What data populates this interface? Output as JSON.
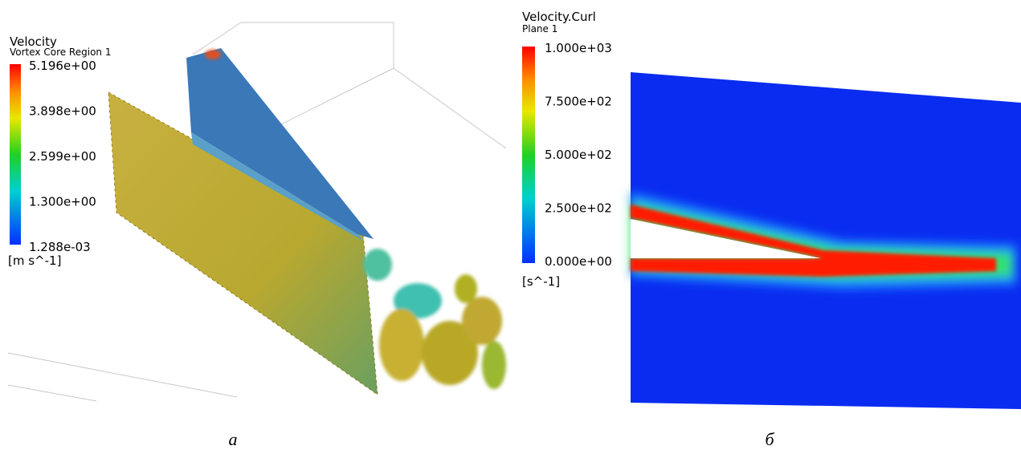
{
  "panel_a": {
    "title": "Velocity",
    "subtitle": "Vortex Core Region 1",
    "legend_labels": [
      "5.196e+00",
      "3.898e+00",
      "2.599e+00",
      "1.300e+00",
      "1.288e-03"
    ],
    "unit": "[m s^-1]",
    "caption": "а"
  },
  "panel_b": {
    "title": "Velocity.Curl",
    "subtitle": "Plane 1",
    "legend_labels": [
      "1.000e+03",
      "7.500e+02",
      "5.000e+02",
      "2.500e+02",
      "0.000e+00"
    ],
    "unit": "[s^-1]",
    "caption": "б"
  }
}
